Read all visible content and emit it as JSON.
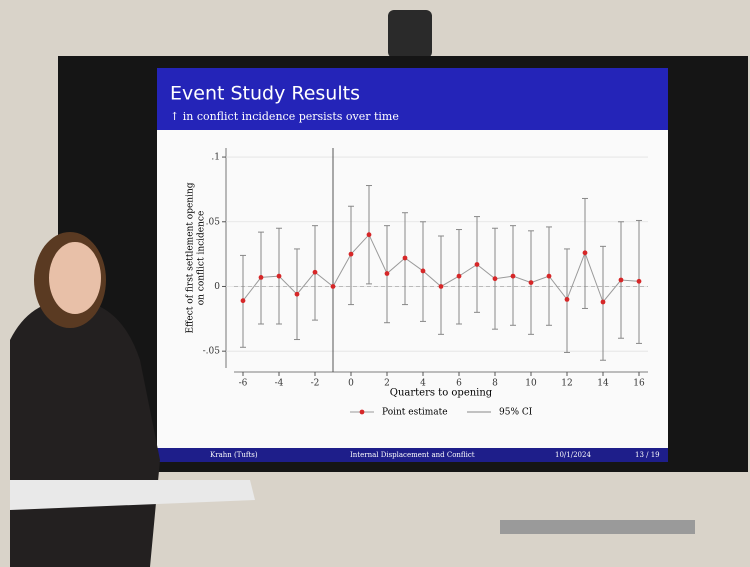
{
  "slide": {
    "title": "Event Study Results",
    "subtitle": "↑ in conflict incidence persists over time",
    "footer": [
      "Krahn (Tufts)",
      "Internal Displacement and Conflict",
      "10/1/2024",
      "13 / 19"
    ]
  },
  "chart_data": {
    "type": "errorbar",
    "y_label": [
      "Effect of first settlement opening",
      "on conflict incidence"
    ],
    "x_label": "Quarters to opening",
    "x": [
      -6,
      -5,
      -4,
      -3,
      -2,
      -1,
      0,
      1,
      2,
      3,
      4,
      5,
      6,
      7,
      8,
      9,
      10,
      11,
      12,
      13,
      14,
      15,
      16
    ],
    "series": [
      {
        "name": "Point estimate",
        "color": "#d62728",
        "values": [
          -0.011,
          0.007,
          0.008,
          -0.006,
          0.011,
          0,
          0.025,
          0.04,
          0.01,
          0.022,
          0.012,
          0.0,
          0.008,
          0.017,
          0.006,
          0.008,
          0.003,
          0.008,
          -0.01,
          0.026,
          -0.012,
          0.005,
          0.004
        ]
      },
      {
        "name": "95% CI",
        "color": "#888888",
        "lower": [
          -0.047,
          -0.029,
          -0.029,
          -0.041,
          -0.026,
          null,
          -0.014,
          0.002,
          -0.028,
          -0.014,
          -0.027,
          -0.037,
          -0.029,
          -0.02,
          -0.033,
          -0.03,
          -0.037,
          -0.03,
          -0.051,
          -0.017,
          -0.057,
          -0.04,
          -0.044
        ],
        "upper": [
          0.024,
          0.042,
          0.045,
          0.029,
          0.047,
          null,
          0.062,
          0.078,
          0.047,
          0.057,
          0.05,
          0.039,
          0.044,
          0.054,
          0.045,
          0.047,
          0.043,
          0.046,
          0.029,
          0.068,
          0.031,
          0.05,
          0.051
        ]
      }
    ],
    "xlim": [
      -6.5,
      16.5
    ],
    "xticks": [
      -6,
      -4,
      -2,
      0,
      2,
      4,
      6,
      8,
      10,
      12,
      14,
      16
    ],
    "ylim": [
      -0.063,
      0.107
    ],
    "yticks": [
      {
        "value": -0.05,
        "label": "-.05"
      },
      0,
      {
        "value": 0.05,
        "label": ".05"
      },
      {
        "value": 0.1,
        "label": ".1"
      }
    ],
    "vline": -1,
    "hline": 0,
    "grid": true
  }
}
